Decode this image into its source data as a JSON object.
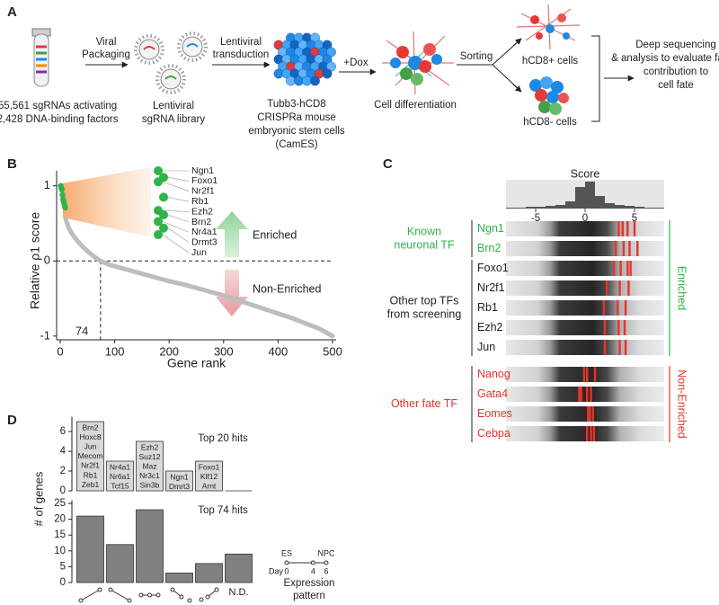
{
  "panels": [
    "A",
    "B",
    "C",
    "D"
  ],
  "workflow": {
    "source": [
      "55,561 sgRNAs activating",
      "2,428 DNA-binding factors"
    ],
    "packaging": [
      "Viral",
      "Packaging"
    ],
    "library": [
      "Lentiviral",
      "sgRNA library"
    ],
    "transduction": [
      "Lentiviral",
      "transduction"
    ],
    "cells": [
      "Tubb3-hCD8",
      "CRISPRa mouse",
      "embryonic stem cells",
      "(CamES)"
    ],
    "dox": "+Dox",
    "differentiation": "Cell differentiation",
    "sorting": "Sorting",
    "positive": "hCD8+ cells",
    "negative": "hCD8- cells",
    "analysis": [
      "Deep sequencing",
      "& analysis to evaluate factor",
      "contribution to",
      "cell fate"
    ]
  },
  "chart_data": [
    {
      "type": "scatter",
      "xlabel": "Gene rank",
      "ylabel": "Relative ρ1 score",
      "xlim": [
        0,
        500
      ],
      "ylim": [
        -1.05,
        1.2
      ],
      "xticks": [
        0,
        100,
        200,
        300,
        400,
        500
      ],
      "yticks": [
        -1,
        0,
        1
      ],
      "reference_y": 0,
      "threshold_rank": 74,
      "annotations": [
        "Enriched",
        "Non-Enriched"
      ],
      "series": [
        {
          "color": "#2fb34a",
          "mode": "markers",
          "x": [
            1,
            2,
            3,
            4,
            5,
            6,
            7,
            8,
            9
          ],
          "values": [
            1.0,
            0.97,
            0.95,
            0.88,
            0.82,
            0.8,
            0.77,
            0.74,
            0.71
          ],
          "labels": [
            "Ngn1",
            "Foxo1",
            "Nr2f1",
            "Rb1",
            "Ezh2",
            "Brn2",
            "Nr4a1",
            "Drmt3",
            "Jun"
          ]
        },
        {
          "color": "#bdbdbd",
          "mode": "line",
          "x": [
            10,
            15,
            20,
            30,
            40,
            50,
            60,
            74,
            90,
            110,
            130,
            150,
            175,
            200,
            225,
            250,
            275,
            300,
            325,
            350,
            375,
            400,
            425,
            450,
            475,
            500
          ],
          "values": [
            0.56,
            0.45,
            0.38,
            0.28,
            0.2,
            0.13,
            0.07,
            0,
            -0.05,
            -0.09,
            -0.13,
            -0.17,
            -0.22,
            -0.27,
            -0.31,
            -0.36,
            -0.41,
            -0.46,
            -0.52,
            -0.58,
            -0.64,
            -0.7,
            -0.76,
            -0.83,
            -0.9,
            -1.0
          ]
        }
      ]
    },
    {
      "type": "heatmap",
      "title": "Score",
      "xlim": [
        -8,
        8
      ],
      "xticks": [
        -5,
        0,
        5
      ],
      "bins": [
        -8,
        -7,
        -6,
        -5,
        -4,
        -3,
        -2,
        -1,
        0,
        1,
        2,
        3,
        4,
        5,
        6,
        7,
        8
      ],
      "counts": [
        1,
        1,
        2,
        2,
        3,
        4,
        8,
        24,
        30,
        14,
        6,
        4,
        3,
        2,
        1,
        1
      ],
      "mark_color": "#e8322b",
      "sections": [
        {
          "label": "Enriched",
          "color": "#2fb34a",
          "groups": [
            {
              "label": [
                "Known",
                "neuronal TF"
              ],
              "color": "#2fb34a",
              "rows": [
                {
                  "name": "Ngn1",
                  "values": [
                    3.4,
                    3.8,
                    4.3,
                    5.0
                  ]
                },
                {
                  "name": "Brn2",
                  "values": [
                    3.1,
                    3.9,
                    4.5,
                    5.3
                  ]
                }
              ]
            },
            {
              "label": [
                "Other top TFs",
                "from screening"
              ],
              "color": "#222222",
              "rows": [
                {
                  "name": "Foxo1",
                  "values": [
                    2.9,
                    3.6,
                    4.3,
                    4.6
                  ]
                },
                {
                  "name": "Nr2f1",
                  "values": [
                    2.2,
                    3.5,
                    4.4
                  ]
                },
                {
                  "name": "Rb1",
                  "values": [
                    1.9,
                    3.3,
                    4.1
                  ]
                },
                {
                  "name": "Ezh2",
                  "values": [
                    2.0,
                    3.4,
                    4.0
                  ]
                },
                {
                  "name": "Jun",
                  "values": [
                    2.0,
                    3.5,
                    4.1
                  ]
                }
              ]
            }
          ]
        },
        {
          "label": "Non-Enriched",
          "color": "#e8322b",
          "groups": [
            {
              "label": [
                "Other fate TF"
              ],
              "color": "#e8322b",
              "rows": [
                {
                  "name": "Nanog",
                  "values": [
                    -0.1,
                    0.2,
                    1.0
                  ]
                },
                {
                  "name": "Gata4",
                  "values": [
                    -0.6,
                    -0.4,
                    0.2,
                    0.6
                  ]
                },
                {
                  "name": "Eomes",
                  "values": [
                    0.3,
                    0.5,
                    0.8
                  ]
                },
                {
                  "name": "Cebpa",
                  "values": [
                    0.2,
                    0.6,
                    0.9
                  ]
                }
              ]
            }
          ]
        }
      ]
    },
    {
      "type": "bar",
      "title": "Top 20 hits",
      "ylabel": "# of genes",
      "color": "#d9d9d9",
      "ylim": [
        0,
        7.5
      ],
      "yticks": [
        0,
        2,
        4,
        6
      ],
      "values": [
        7,
        3,
        5,
        2,
        3,
        0
      ],
      "bar_text": [
        [
          "Brn2",
          "Hoxc8",
          "Jun",
          "Mecom",
          "Nr2f1",
          "Rb1",
          "Zeb1"
        ],
        [
          "Nr4a1",
          "Nr6a1",
          "Tcf15"
        ],
        [
          "Ezh2",
          "Suz12",
          "Maz",
          "Nr3c1",
          "Sin3b"
        ],
        [
          "Ngn1",
          "Dmrt3"
        ],
        [
          "Foxo1",
          "Klf12",
          "Arnt"
        ],
        []
      ]
    },
    {
      "type": "bar",
      "title": "Top 74 hits",
      "color": "#808080",
      "ylim": [
        0,
        26
      ],
      "yticks": [
        0,
        5,
        10,
        15,
        20,
        25
      ],
      "values": [
        21,
        12,
        23,
        3,
        6,
        9
      ],
      "categories": [
        null,
        null,
        null,
        null,
        null,
        "N.D."
      ]
    }
  ],
  "expression_legend": {
    "stages": [
      "ES",
      "NPC"
    ],
    "day_label": "Day",
    "days": [
      0,
      4,
      6
    ],
    "title": [
      "Expression",
      "pattern"
    ]
  }
}
